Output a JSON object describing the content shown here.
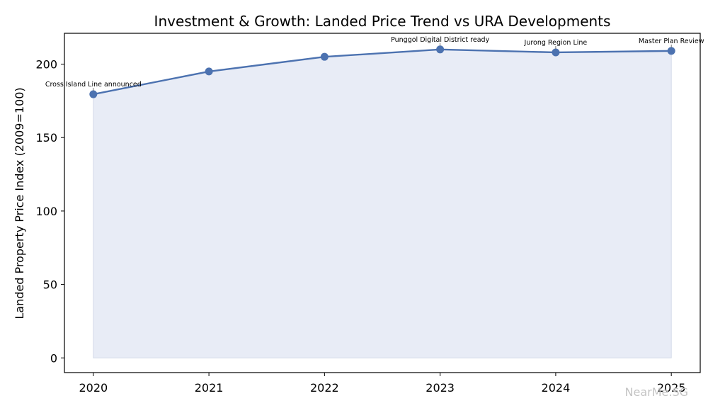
{
  "chart_data": {
    "type": "line",
    "title": "Investment & Growth: Landed Price Trend vs URA Developments",
    "xlabel": "",
    "ylabel": "Landed Property Price Index (2009=100)",
    "x": [
      2020,
      2021,
      2022,
      2023,
      2024,
      2025
    ],
    "values": [
      179.5,
      195,
      205,
      210,
      208,
      209
    ],
    "xlim": [
      2019.75,
      2025.25
    ],
    "ylim": [
      -10,
      221
    ],
    "yticks": [
      0,
      50,
      100,
      150,
      200
    ],
    "xticks": [
      2020,
      2021,
      2022,
      2023,
      2024,
      2025
    ],
    "xtick_labels": [
      "2020",
      "2021",
      "2022",
      "2023",
      "2024",
      "2025"
    ],
    "ytick_labels": [
      "0",
      "50",
      "100",
      "150",
      "200"
    ],
    "grid": false,
    "filled_area": true,
    "line_color": "#4c72b0",
    "fill_color": "#e8ecf6",
    "annotations": [
      {
        "x": 2020,
        "text": "Cross Island Line announced"
      },
      {
        "x": 2023,
        "text": "Punggol Digital District ready"
      },
      {
        "x": 2024,
        "text": "Jurong Region Line"
      },
      {
        "x": 2025,
        "text": "Master Plan Review"
      }
    ]
  },
  "watermark": "NearMe.SG"
}
